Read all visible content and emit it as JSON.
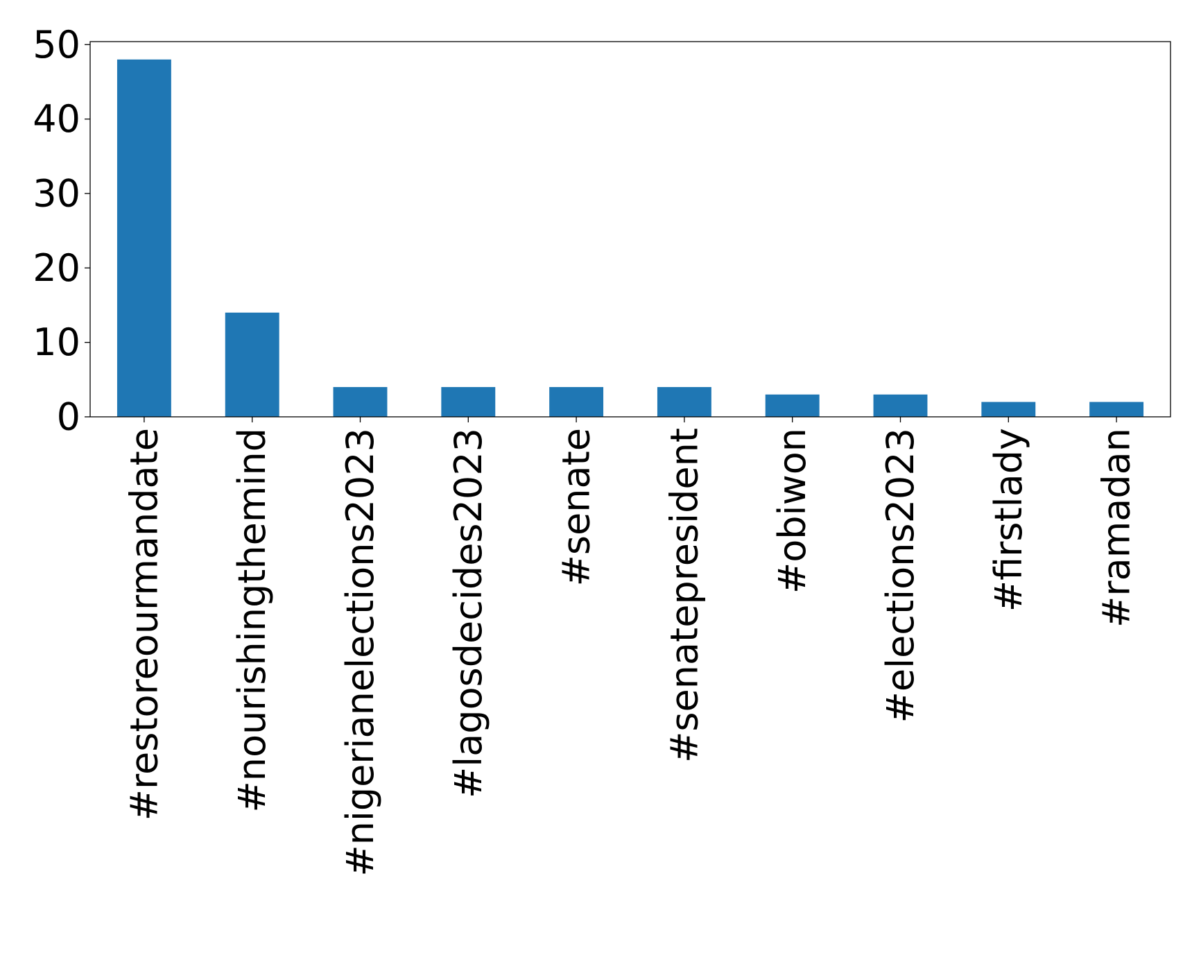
{
  "chart_data": {
    "type": "bar",
    "title": "",
    "xlabel": "",
    "ylabel": "",
    "categories": [
      "#restoreourmandate",
      "#nourishingthemind",
      "#nigerianelections2023",
      "#lagosdecides2023",
      "#senate",
      "#senatepresident",
      "#obiwon",
      "#elections2023",
      "#firstlady",
      "#ramadan"
    ],
    "values": [
      48,
      14,
      4,
      4,
      4,
      4,
      3,
      3,
      2,
      2
    ],
    "ylim": [
      0,
      50.4
    ],
    "yticks": [
      0,
      10,
      20,
      30,
      40,
      50
    ],
    "grid": false,
    "legend": "none",
    "bar_color": "#1f77b4"
  }
}
